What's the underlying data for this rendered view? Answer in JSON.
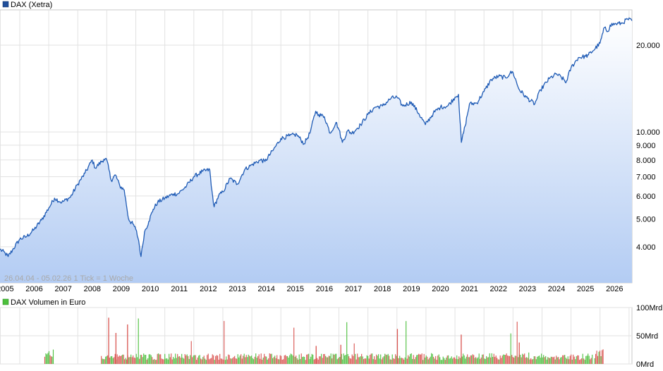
{
  "chart_data": [
    {
      "type": "area",
      "legend": {
        "label": "DAX (Xetra)",
        "color": "#1f4e9a",
        "placement": "top-left"
      },
      "info_text": "26.04.04 - 05.02.26    1 Tick = 1 Woche",
      "y_scale": "log",
      "grid": true,
      "x_ticks": [
        "2005",
        "2006",
        "2007",
        "2008",
        "2009",
        "2010",
        "2011",
        "2012",
        "2013",
        "2014",
        "2015",
        "2016",
        "2017",
        "2018",
        "2019",
        "2020",
        "2021",
        "2022",
        "2023",
        "2024",
        "2025",
        "2026"
      ],
      "y_ticks": [
        {
          "value": 4000,
          "label": "4.000"
        },
        {
          "value": 5000,
          "label": "5.000"
        },
        {
          "value": 6000,
          "label": "6.000"
        },
        {
          "value": 7000,
          "label": "7.000"
        },
        {
          "value": 8000,
          "label": "8.000"
        },
        {
          "value": 9000,
          "label": "9.000"
        },
        {
          "value": 10000,
          "label": "10.000"
        },
        {
          "value": 20000,
          "label": "20.000"
        }
      ],
      "ylim": [
        3000,
        26500
      ],
      "xlim": [
        2004.32,
        2026.1
      ],
      "series": [
        {
          "name": "DAX (Xetra)",
          "x": [
            2004.32,
            2004.5,
            2004.6,
            2004.75,
            2005.0,
            2005.25,
            2005.5,
            2005.75,
            2006.0,
            2006.2,
            2006.45,
            2006.75,
            2007.0,
            2007.25,
            2007.5,
            2007.6,
            2007.9,
            2008.0,
            2008.15,
            2008.3,
            2008.45,
            2008.6,
            2008.75,
            2008.8,
            2008.9,
            2009.0,
            2009.1,
            2009.18,
            2009.3,
            2009.45,
            2009.6,
            2009.75,
            2010.0,
            2010.3,
            2010.45,
            2010.6,
            2010.75,
            2011.0,
            2011.3,
            2011.55,
            2011.6,
            2011.7,
            2011.85,
            2012.0,
            2012.25,
            2012.5,
            2012.75,
            2013.0,
            2013.3,
            2013.45,
            2013.75,
            2014.0,
            2014.3,
            2014.55,
            2014.8,
            2015.0,
            2015.2,
            2015.3,
            2015.5,
            2015.7,
            2015.9,
            2016.0,
            2016.12,
            2016.3,
            2016.45,
            2016.75,
            2017.0,
            2017.25,
            2017.5,
            2017.8,
            2018.0,
            2018.2,
            2018.5,
            2018.75,
            2018.98,
            2019.25,
            2019.5,
            2019.75,
            2020.0,
            2020.12,
            2020.22,
            2020.35,
            2020.5,
            2020.75,
            2021.0,
            2021.25,
            2021.5,
            2021.75,
            2021.9,
            2022.0,
            2022.2,
            2022.45,
            2022.75,
            2022.95,
            2023.25,
            2023.5,
            2023.75,
            2023.82,
            2024.0,
            2024.25,
            2024.5,
            2024.6,
            2024.75,
            2025.0,
            2025.15,
            2025.27,
            2025.35,
            2025.55,
            2025.75,
            2025.95,
            2026.1
          ],
          "y": [
            3920,
            3800,
            3700,
            3900,
            4250,
            4350,
            4600,
            4950,
            5450,
            5900,
            5700,
            5950,
            6600,
            7200,
            8000,
            7500,
            8050,
            8000,
            6800,
            7100,
            6500,
            6300,
            5000,
            4900,
            4800,
            4600,
            4200,
            3700,
            4500,
            4900,
            5400,
            5700,
            5900,
            6100,
            6100,
            6300,
            6500,
            7000,
            7300,
            7400,
            6500,
            5500,
            6000,
            6200,
            6900,
            6600,
            7400,
            7700,
            8000,
            7900,
            8700,
            9500,
            9700,
            9800,
            9100,
            9900,
            11800,
            11500,
            11300,
            9900,
            10800,
            10200,
            9200,
            10100,
            9900,
            10600,
            11500,
            12200,
            12300,
            13100,
            13200,
            12300,
            12700,
            11600,
            10600,
            11600,
            12200,
            12300,
            13200,
            13500,
            9200,
            10500,
            12500,
            12600,
            13800,
            15200,
            15600,
            15400,
            16000,
            16100,
            14100,
            13200,
            12500,
            14000,
            15300,
            15900,
            15200,
            14800,
            16700,
            18100,
            18300,
            18500,
            19100,
            20300,
            23000,
            22300,
            23500,
            23700,
            23800,
            24600,
            24300
          ]
        }
      ]
    },
    {
      "type": "bar",
      "legend": {
        "label": "DAX Volumen in Euro",
        "color": "#4cbf3c",
        "placement": "top-left"
      },
      "y_ticks": [
        {
          "value": 0,
          "label": "0Mrd"
        },
        {
          "value": 50,
          "label": "50Mrd"
        },
        {
          "value": 100,
          "label": "100Mrd"
        }
      ],
      "ylim": [
        0,
        100
      ],
      "up_color": "#4cbf3c",
      "down_color": "#d9534f",
      "segments": [
        {
          "from": 2005.85,
          "to": 2006.15,
          "level": 16,
          "peak": 35
        },
        {
          "from": 2007.8,
          "to": 2024.75,
          "level": 13,
          "peak": 85
        },
        {
          "from": 2024.8,
          "to": 2025.1,
          "level": 18,
          "peak": 30
        }
      ],
      "spikes": [
        {
          "x": 2008.05,
          "value": 82
        },
        {
          "x": 2008.7,
          "value": 70
        },
        {
          "x": 2008.3,
          "value": 55
        },
        {
          "x": 2018.0,
          "value": 62
        },
        {
          "x": 2020.2,
          "value": 52
        },
        {
          "x": 2022.2,
          "value": 38
        },
        {
          "x": 2016.05,
          "value": 34
        },
        {
          "x": 2015.2,
          "value": 32
        }
      ]
    }
  ]
}
